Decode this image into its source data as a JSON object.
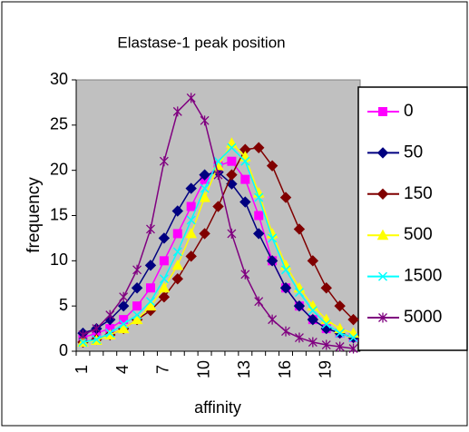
{
  "chart_data": {
    "type": "line",
    "title": "Elastase-1 peak position",
    "x_label": "affinity",
    "y_label": "frequency",
    "categories": [
      "1",
      null,
      null,
      "4",
      null,
      null,
      "7",
      null,
      null,
      "10",
      null,
      null,
      "13",
      null,
      null,
      "16",
      null,
      null,
      "19",
      null,
      null
    ],
    "series": [
      {
        "name": "0",
        "color": "#ff00ff",
        "marker": "square",
        "values": [
          1.5,
          2,
          2.5,
          3.5,
          5,
          7,
          10,
          13,
          16,
          19,
          20.5,
          21,
          19,
          15,
          10,
          7,
          5,
          3.5,
          2.5,
          2,
          1.5
        ]
      },
      {
        "name": "50",
        "color": "#000080",
        "marker": "diamond",
        "values": [
          2,
          2.5,
          3.5,
          5,
          7,
          9.5,
          12.5,
          15.5,
          18,
          19.5,
          19.8,
          18.5,
          16.5,
          13,
          10,
          7,
          5,
          3.5,
          2.5,
          2,
          1.5
        ]
      },
      {
        "name": "150",
        "color": "#800000",
        "marker": "diamond",
        "values": [
          1,
          1.3,
          1.8,
          2.5,
          3.5,
          4.5,
          6,
          8,
          10.5,
          13,
          16,
          19.5,
          22.3,
          22.5,
          20.5,
          17,
          13.5,
          10,
          7,
          5,
          3.5
        ]
      },
      {
        "name": "500",
        "color": "#ffff00",
        "marker": "triangle",
        "values": [
          1,
          1.2,
          1.8,
          2.5,
          3.5,
          5,
          7,
          9.5,
          13,
          17,
          20.5,
          23,
          21.5,
          17.5,
          13,
          9.5,
          7,
          5,
          3.5,
          2.5,
          2
        ]
      },
      {
        "name": "1500",
        "color": "#00ffff",
        "marker": "x",
        "values": [
          1,
          1.3,
          2,
          3,
          4,
          5.5,
          8,
          11,
          14.5,
          18,
          21,
          22.5,
          21,
          17,
          12.5,
          9,
          6.5,
          4.5,
          3,
          2,
          1.5
        ]
      },
      {
        "name": "5000",
        "color": "#800080",
        "marker": "star",
        "values": [
          1.8,
          2.5,
          4,
          6,
          9,
          13.5,
          21,
          26.5,
          28,
          25.5,
          19.5,
          13,
          8.5,
          5.5,
          3.5,
          2.2,
          1.5,
          1,
          0.7,
          0.5,
          0.3
        ]
      }
    ],
    "ylim": [
      0,
      30
    ],
    "yticks": [
      0,
      5,
      10,
      15,
      20,
      25,
      30
    ],
    "plot_background": "#c0c0c0"
  }
}
